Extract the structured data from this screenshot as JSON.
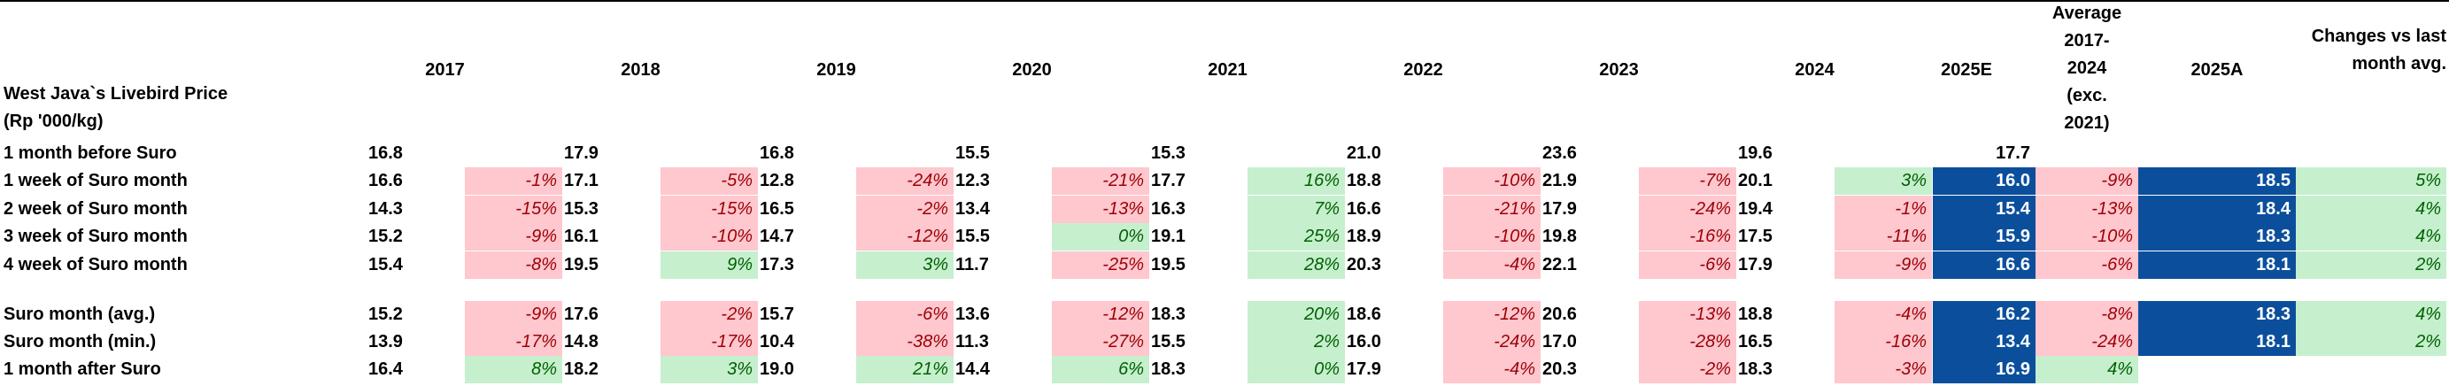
{
  "title_line1": "West Java`s Livebird Price",
  "title_line2": "(Rp '000/kg)",
  "headers": [
    "2017",
    "2018",
    "2019",
    "2020",
    "2021",
    "2022",
    "2023",
    "2024",
    "2025E"
  ],
  "avg_header": [
    "Average",
    "2017-",
    "2024",
    "(exc.",
    "2021)"
  ],
  "header_2025a": "2025A",
  "changes_header": [
    "Changes vs last",
    "month avg."
  ],
  "rows": [
    {
      "label": "1 month before Suro",
      "cells": [
        [
          "16.8",
          null
        ],
        [
          "17.9",
          null
        ],
        [
          "16.8",
          null
        ],
        [
          "15.5",
          null
        ],
        [
          "15.3",
          null
        ],
        [
          "21.0",
          null
        ],
        [
          "23.6",
          null
        ],
        [
          "19.6",
          null
        ]
      ],
      "e2025": "17.7",
      "avg": null,
      "a2025": null,
      "chg": null
    },
    {
      "label": "1 week of Suro month",
      "cells": [
        [
          "16.6",
          "-1%"
        ],
        [
          "17.1",
          "-5%"
        ],
        [
          "12.8",
          "-24%"
        ],
        [
          "12.3",
          "-21%"
        ],
        [
          "17.7",
          "16%"
        ],
        [
          "18.8",
          "-10%"
        ],
        [
          "21.9",
          "-7%"
        ],
        [
          "20.1",
          "3%"
        ]
      ],
      "e2025": "16.0",
      "avg": "-9%",
      "a2025": "18.5",
      "chg": "5%"
    },
    {
      "label": "2 week of Suro month",
      "cells": [
        [
          "14.3",
          "-15%"
        ],
        [
          "15.3",
          "-15%"
        ],
        [
          "16.5",
          "-2%"
        ],
        [
          "13.4",
          "-13%"
        ],
        [
          "16.3",
          "7%"
        ],
        [
          "16.6",
          "-21%"
        ],
        [
          "17.9",
          "-24%"
        ],
        [
          "19.4",
          "-1%"
        ]
      ],
      "e2025": "15.4",
      "avg": "-13%",
      "a2025": "18.4",
      "chg": "4%"
    },
    {
      "label": "3 week of Suro month",
      "cells": [
        [
          "15.2",
          "-9%"
        ],
        [
          "16.1",
          "-10%"
        ],
        [
          "14.7",
          "-12%"
        ],
        [
          "15.5",
          "0%"
        ],
        [
          "19.1",
          "25%"
        ],
        [
          "18.9",
          "-10%"
        ],
        [
          "19.8",
          "-16%"
        ],
        [
          "17.5",
          "-11%"
        ]
      ],
      "e2025": "15.9",
      "avg": "-10%",
      "a2025": "18.3",
      "chg": "4%"
    },
    {
      "label": "4 week of Suro month",
      "cells": [
        [
          "15.4",
          "-8%"
        ],
        [
          "19.5",
          "9%"
        ],
        [
          "17.3",
          "3%"
        ],
        [
          "11.7",
          "-25%"
        ],
        [
          "19.5",
          "28%"
        ],
        [
          "20.3",
          "-4%"
        ],
        [
          "22.1",
          "-6%"
        ],
        [
          "17.9",
          "-9%"
        ]
      ],
      "e2025": "16.6",
      "avg": "-6%",
      "a2025": "18.1",
      "chg": "2%"
    },
    {
      "label": "Suro month (avg.)",
      "cells": [
        [
          "15.2",
          "-9%"
        ],
        [
          "17.6",
          "-2%"
        ],
        [
          "15.7",
          "-6%"
        ],
        [
          "13.6",
          "-12%"
        ],
        [
          "18.3",
          "20%"
        ],
        [
          "18.6",
          "-12%"
        ],
        [
          "20.6",
          "-13%"
        ],
        [
          "18.8",
          "-4%"
        ]
      ],
      "e2025": "16.2",
      "avg": "-8%",
      "a2025": "18.3",
      "chg": "4%"
    },
    {
      "label": "Suro month (min.)",
      "cells": [
        [
          "13.9",
          "-17%"
        ],
        [
          "14.8",
          "-17%"
        ],
        [
          "10.4",
          "-38%"
        ],
        [
          "11.3",
          "-27%"
        ],
        [
          "15.5",
          "2%"
        ],
        [
          "16.0",
          "-24%"
        ],
        [
          "17.0",
          "-28%"
        ],
        [
          "16.5",
          "-16%"
        ]
      ],
      "e2025": "13.4",
      "avg": "-24%",
      "a2025": "18.1",
      "chg": "2%"
    },
    {
      "label": "1 month after Suro",
      "cells": [
        [
          "16.4",
          "8%"
        ],
        [
          "18.2",
          "3%"
        ],
        [
          "19.0",
          "21%"
        ],
        [
          "14.4",
          "6%"
        ],
        [
          "18.3",
          "0%"
        ],
        [
          "17.9",
          "-4%"
        ],
        [
          "20.3",
          "-2%"
        ],
        [
          "18.3",
          "-3%"
        ]
      ],
      "e2025": "16.9",
      "avg": "4%",
      "a2025": null,
      "chg": null
    }
  ],
  "colors": {
    "negative_bg": "#ffc7ce",
    "negative_fg": "#9c0006",
    "positive_bg": "#c6efce",
    "positive_fg": "#006100",
    "highlight": "#0b4f9c"
  }
}
